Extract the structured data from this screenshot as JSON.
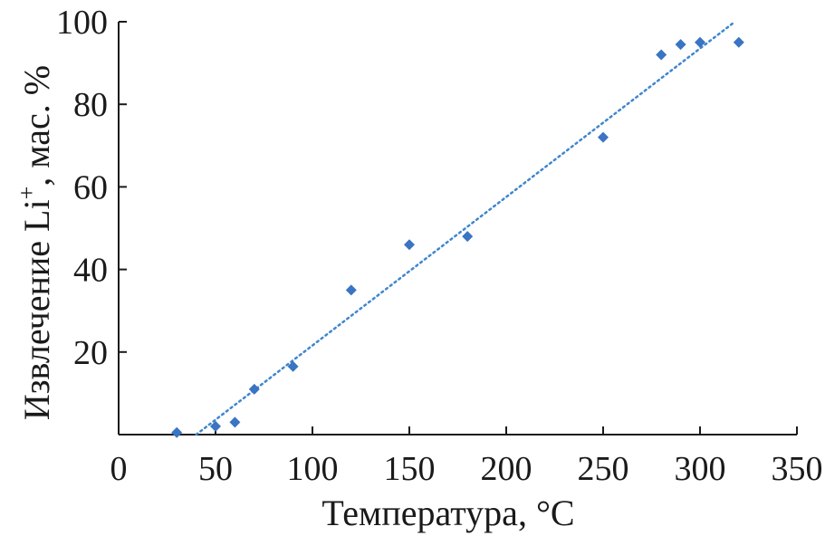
{
  "chart_data": {
    "type": "scatter",
    "title": "",
    "xlabel": "Температура, °C",
    "ylabel_main": "Извлечение Li",
    "ylabel_sup": "+",
    "ylabel_tail": ", мас. %",
    "xlim": [
      0,
      350
    ],
    "ylim": [
      0,
      100
    ],
    "x_ticks": [
      0,
      50,
      100,
      150,
      200,
      250,
      300,
      350
    ],
    "y_ticks": [
      20,
      40,
      60,
      80,
      100
    ],
    "grid": false,
    "legend": "none",
    "series": [
      {
        "marker": "diamond",
        "color": "#3a74c2",
        "x": [
          30,
          50,
          60,
          70,
          90,
          120,
          150,
          180,
          250,
          280,
          290,
          300,
          320
        ],
        "y": [
          0.5,
          2,
          3,
          11,
          16.5,
          35,
          46,
          48,
          72,
          92,
          94.5,
          95,
          95
        ]
      }
    ],
    "trendline": {
      "style": "dotted",
      "color": "#3f86cf",
      "x": [
        40,
        318
      ],
      "y": [
        0,
        100
      ]
    }
  }
}
